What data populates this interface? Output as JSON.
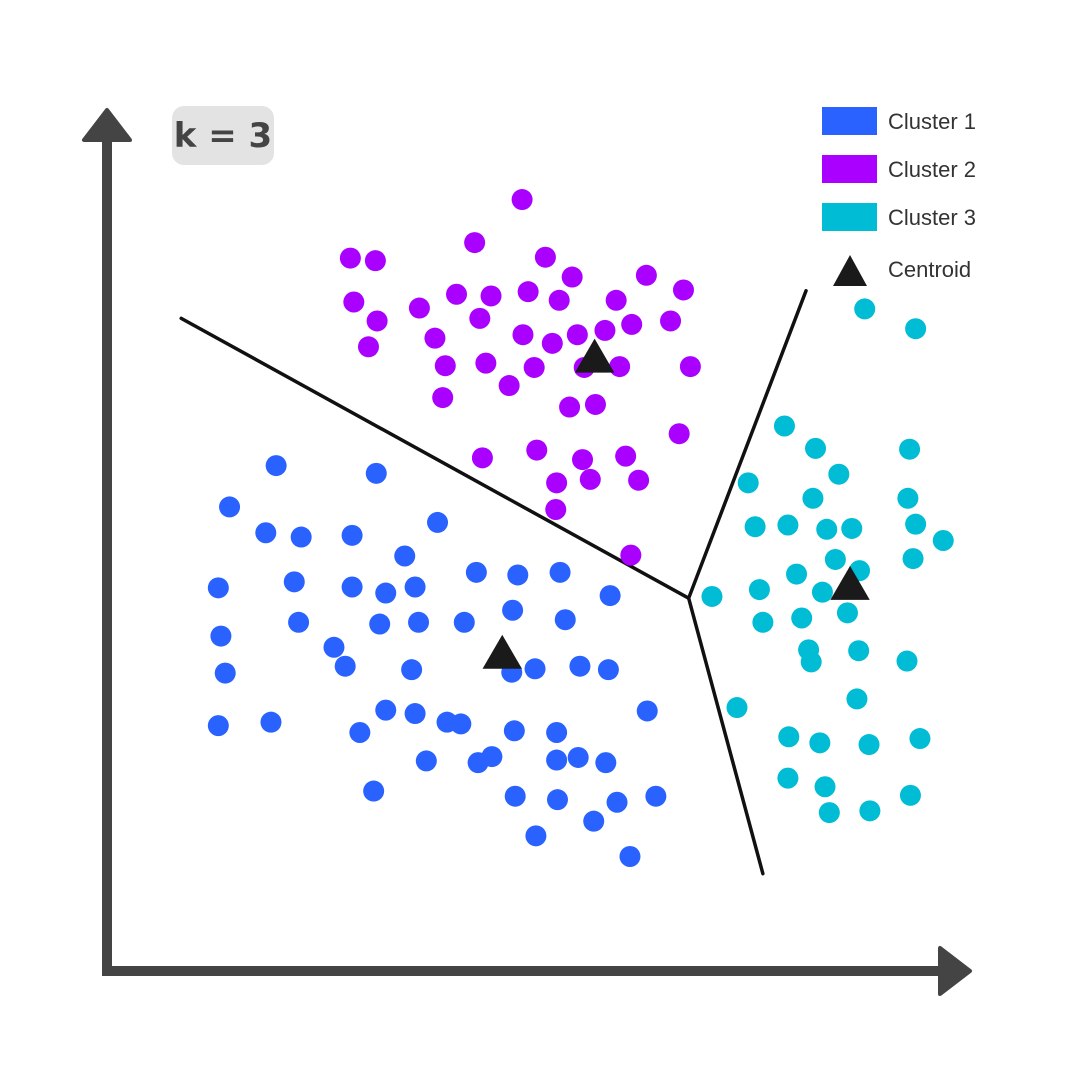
{
  "chart_data": {
    "type": "scatter",
    "title": "",
    "xlabel": "",
    "ylabel": "",
    "xlim": [
      0,
      100
    ],
    "ylim": [
      0,
      100
    ],
    "grid": false,
    "legend_position": "top-right",
    "annotation": "k = 3",
    "series": [
      {
        "name": "Cluster 1",
        "color": "#2962ff",
        "marker": "circle",
        "points": [
          [
            19.6,
            58.7
          ],
          [
            31.2,
            57.8
          ],
          [
            14.2,
            53.9
          ],
          [
            18.4,
            50.9
          ],
          [
            22.5,
            50.4
          ],
          [
            28.4,
            50.6
          ],
          [
            38.3,
            52.1
          ],
          [
            34.5,
            48.2
          ],
          [
            21.7,
            45.2
          ],
          [
            12.9,
            44.5
          ],
          [
            28.4,
            44.6
          ],
          [
            32.3,
            43.9
          ],
          [
            35.7,
            44.6
          ],
          [
            42.8,
            46.3
          ],
          [
            47.6,
            46.0
          ],
          [
            52.5,
            46.3
          ],
          [
            58.3,
            43.6
          ],
          [
            13.2,
            38.9
          ],
          [
            22.2,
            40.5
          ],
          [
            26.3,
            37.6
          ],
          [
            31.6,
            40.3
          ],
          [
            36.1,
            40.5
          ],
          [
            41.4,
            40.5
          ],
          [
            47.0,
            41.9
          ],
          [
            53.1,
            40.8
          ],
          [
            13.7,
            34.6
          ],
          [
            27.6,
            35.4
          ],
          [
            35.3,
            35.0
          ],
          [
            46.9,
            34.7
          ],
          [
            49.6,
            35.1
          ],
          [
            54.8,
            35.4
          ],
          [
            58.1,
            35.0
          ],
          [
            12.9,
            28.5
          ],
          [
            19.0,
            28.9
          ],
          [
            29.3,
            27.7
          ],
          [
            32.3,
            30.3
          ],
          [
            35.7,
            29.9
          ],
          [
            39.4,
            28.9
          ],
          [
            41.0,
            28.7
          ],
          [
            47.2,
            27.9
          ],
          [
            52.1,
            27.7
          ],
          [
            62.6,
            30.2
          ],
          [
            44.6,
            24.9
          ],
          [
            52.1,
            24.5
          ],
          [
            54.6,
            24.8
          ],
          [
            57.8,
            24.2
          ],
          [
            37.0,
            24.4
          ],
          [
            43.0,
            24.2
          ],
          [
            30.9,
            20.9
          ],
          [
            47.3,
            20.3
          ],
          [
            52.2,
            19.9
          ],
          [
            59.1,
            19.6
          ],
          [
            63.6,
            20.3
          ],
          [
            56.4,
            17.4
          ],
          [
            49.7,
            15.7
          ],
          [
            60.6,
            13.3
          ]
        ]
      },
      {
        "name": "Cluster 2",
        "color": "#aa00ff",
        "marker": "circle",
        "points": [
          [
            48.1,
            89.6
          ],
          [
            42.6,
            84.6
          ],
          [
            31.1,
            82.5
          ],
          [
            28.2,
            82.8
          ],
          [
            50.8,
            82.9
          ],
          [
            53.9,
            80.6
          ],
          [
            62.5,
            80.8
          ],
          [
            66.8,
            79.1
          ],
          [
            28.6,
            77.7
          ],
          [
            36.2,
            77.0
          ],
          [
            40.5,
            78.6
          ],
          [
            44.5,
            78.4
          ],
          [
            48.8,
            78.9
          ],
          [
            52.4,
            77.9
          ],
          [
            59.0,
            77.9
          ],
          [
            31.3,
            75.5
          ],
          [
            43.2,
            75.8
          ],
          [
            48.2,
            73.9
          ],
          [
            51.6,
            72.9
          ],
          [
            54.5,
            73.9
          ],
          [
            57.7,
            74.4
          ],
          [
            60.8,
            75.1
          ],
          [
            65.3,
            75.5
          ],
          [
            30.3,
            72.5
          ],
          [
            38.0,
            73.5
          ],
          [
            39.2,
            70.3
          ],
          [
            43.9,
            70.6
          ],
          [
            49.5,
            70.1
          ],
          [
            55.3,
            70.1
          ],
          [
            59.4,
            70.2
          ],
          [
            67.6,
            70.2
          ],
          [
            38.9,
            66.6
          ],
          [
            46.6,
            68.0
          ],
          [
            53.6,
            65.5
          ],
          [
            56.6,
            65.8
          ],
          [
            66.3,
            62.4
          ],
          [
            43.5,
            59.6
          ],
          [
            49.8,
            60.5
          ],
          [
            55.1,
            59.4
          ],
          [
            60.1,
            59.8
          ],
          [
            52.1,
            56.7
          ],
          [
            56.0,
            57.1
          ],
          [
            61.6,
            57.0
          ],
          [
            52.0,
            53.6
          ],
          [
            60.7,
            48.3
          ]
        ]
      },
      {
        "name": "Cluster 3",
        "color": "#00bcd4",
        "marker": "circle",
        "points": [
          [
            87.8,
            76.9
          ],
          [
            93.7,
            74.6
          ],
          [
            78.5,
            63.3
          ],
          [
            82.1,
            60.7
          ],
          [
            93.0,
            60.6
          ],
          [
            84.8,
            57.7
          ],
          [
            74.3,
            56.7
          ],
          [
            81.8,
            54.9
          ],
          [
            92.8,
            54.9
          ],
          [
            75.1,
            51.6
          ],
          [
            78.9,
            51.8
          ],
          [
            83.4,
            51.3
          ],
          [
            86.3,
            51.4
          ],
          [
            93.7,
            51.9
          ],
          [
            96.9,
            50.0
          ],
          [
            84.4,
            47.8
          ],
          [
            87.2,
            46.5
          ],
          [
            93.4,
            47.9
          ],
          [
            70.1,
            43.5
          ],
          [
            75.6,
            44.3
          ],
          [
            79.9,
            46.1
          ],
          [
            82.9,
            44.0
          ],
          [
            76.0,
            40.5
          ],
          [
            80.5,
            41.0
          ],
          [
            85.8,
            41.6
          ],
          [
            81.3,
            37.3
          ],
          [
            87.1,
            37.2
          ],
          [
            81.6,
            35.9
          ],
          [
            92.7,
            36.0
          ],
          [
            73.0,
            30.6
          ],
          [
            86.9,
            31.6
          ],
          [
            79.0,
            27.2
          ],
          [
            82.6,
            26.5
          ],
          [
            88.3,
            26.3
          ],
          [
            94.2,
            27.0
          ],
          [
            78.9,
            22.4
          ],
          [
            83.2,
            21.4
          ],
          [
            93.1,
            20.4
          ],
          [
            83.7,
            18.4
          ],
          [
            88.4,
            18.6
          ]
        ]
      },
      {
        "name": "Centroid",
        "color": "#1a1a1a",
        "marker": "triangle",
        "points": [
          [
            56.5,
            71.0
          ],
          [
            45.8,
            36.6
          ],
          [
            86.1,
            44.6
          ]
        ]
      }
    ],
    "decision_boundaries": [
      [
        [
          8.6,
          75.8
        ],
        [
          67.4,
          43.3
        ]
      ],
      [
        [
          67.4,
          43.3
        ],
        [
          81.0,
          79.0
        ]
      ],
      [
        [
          67.4,
          43.3
        ],
        [
          76.0,
          11.3
        ]
      ]
    ]
  }
}
